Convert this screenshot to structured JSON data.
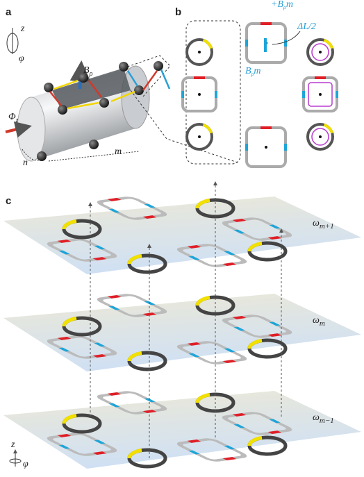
{
  "panels": {
    "a": {
      "label": "a",
      "axis_z": "z",
      "axis_phi": "φ",
      "field": {
        "base": "B",
        "sub": "ρ"
      },
      "flux": {
        "base": "Φ",
        "sub": "z"
      },
      "n": "n",
      "m": "m"
    },
    "b": {
      "label": "b",
      "field_plus": {
        "prefix": "+",
        "base": "B",
        "sub": "ρ",
        "suffix": "m"
      },
      "delta": "ΔL/2",
      "field_minus": {
        "base": "B",
        "sub": "ρ",
        "suffix": "m"
      }
    },
    "c": {
      "label": "c",
      "layers": [
        {
          "base": "ω",
          "sub": "m+1"
        },
        {
          "base": "ω",
          "sub": "m"
        },
        {
          "base": "ω",
          "sub": "m−1"
        }
      ],
      "axis_z": "z",
      "axis_phi": "φ"
    }
  }
}
